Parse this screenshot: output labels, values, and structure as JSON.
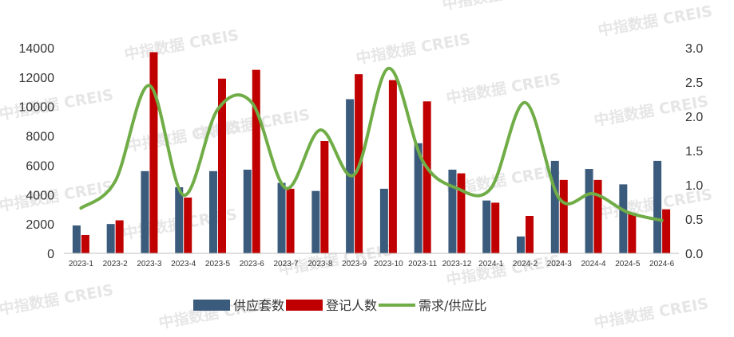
{
  "watermark": "中指数据 CREIS",
  "chart_data": {
    "type": "bar",
    "categories": [
      "2023-1",
      "2023-2",
      "2023-3",
      "2023-4",
      "2023-5",
      "2023-6",
      "2023-7",
      "2023-8",
      "2023-9",
      "2023-10",
      "2023-11",
      "2023-12",
      "2024-1",
      "2024-2",
      "2024-3",
      "2024-4",
      "2024-5",
      "2024-6"
    ],
    "series": [
      {
        "name": "供应套数",
        "type": "bar",
        "axis": "left",
        "color": "#3b5b7d",
        "values": [
          1900,
          2000,
          5600,
          4500,
          5600,
          5700,
          4800,
          4250,
          10500,
          4400,
          7500,
          5700,
          3600,
          1150,
          6300,
          5750,
          4700,
          6300
        ]
      },
      {
        "name": "登记人数",
        "type": "bar",
        "axis": "left",
        "color": "#c00000",
        "values": [
          1250,
          2250,
          13700,
          3800,
          11900,
          12500,
          4400,
          7650,
          12200,
          11800,
          10350,
          5450,
          3450,
          2550,
          5000,
          5000,
          2750,
          3000
        ]
      },
      {
        "name": "需求/供应比",
        "type": "line",
        "axis": "right",
        "color": "#70ad47",
        "smooth": true,
        "values": [
          0.66,
          1.05,
          2.45,
          0.85,
          2.1,
          2.2,
          0.95,
          1.8,
          1.15,
          2.7,
          1.35,
          0.95,
          0.95,
          2.2,
          0.8,
          0.87,
          0.6,
          0.48
        ]
      }
    ],
    "left_axis": {
      "ticks": [
        "0",
        "2000",
        "4000",
        "6000",
        "8000",
        "10000",
        "12000",
        "14000"
      ],
      "ylim": [
        0,
        14000
      ]
    },
    "right_axis": {
      "ticks": [
        "0.0",
        "0.5",
        "1.0",
        "1.5",
        "2.0",
        "2.5",
        "3.0"
      ],
      "ylim": [
        0,
        3.0
      ]
    },
    "legend": {
      "position": "bottom",
      "items": [
        "供应套数",
        "登记人数",
        "需求/供应比"
      ]
    },
    "grid": false
  }
}
